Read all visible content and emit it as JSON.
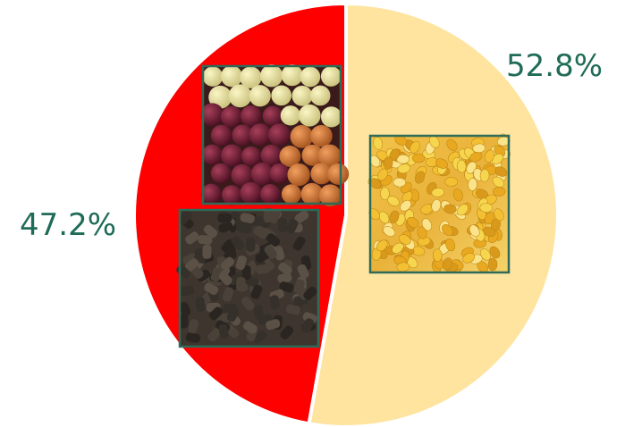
{
  "chart_data": {
    "type": "pie",
    "slices": [
      {
        "value": 52.8,
        "label": "52.8%",
        "color": "#fee49f",
        "images": [
          "corn-photo"
        ]
      },
      {
        "value": 47.2,
        "label": "47.2%",
        "color": "#ff0000",
        "images": [
          "boilies-photo",
          "pellets-photo"
        ]
      }
    ],
    "start_angle_deg": 0,
    "direction": "clockwise",
    "slice_border_color": "#ffffff",
    "label_color": "#1f6b57",
    "image_frame_color": "#2f6b58"
  }
}
